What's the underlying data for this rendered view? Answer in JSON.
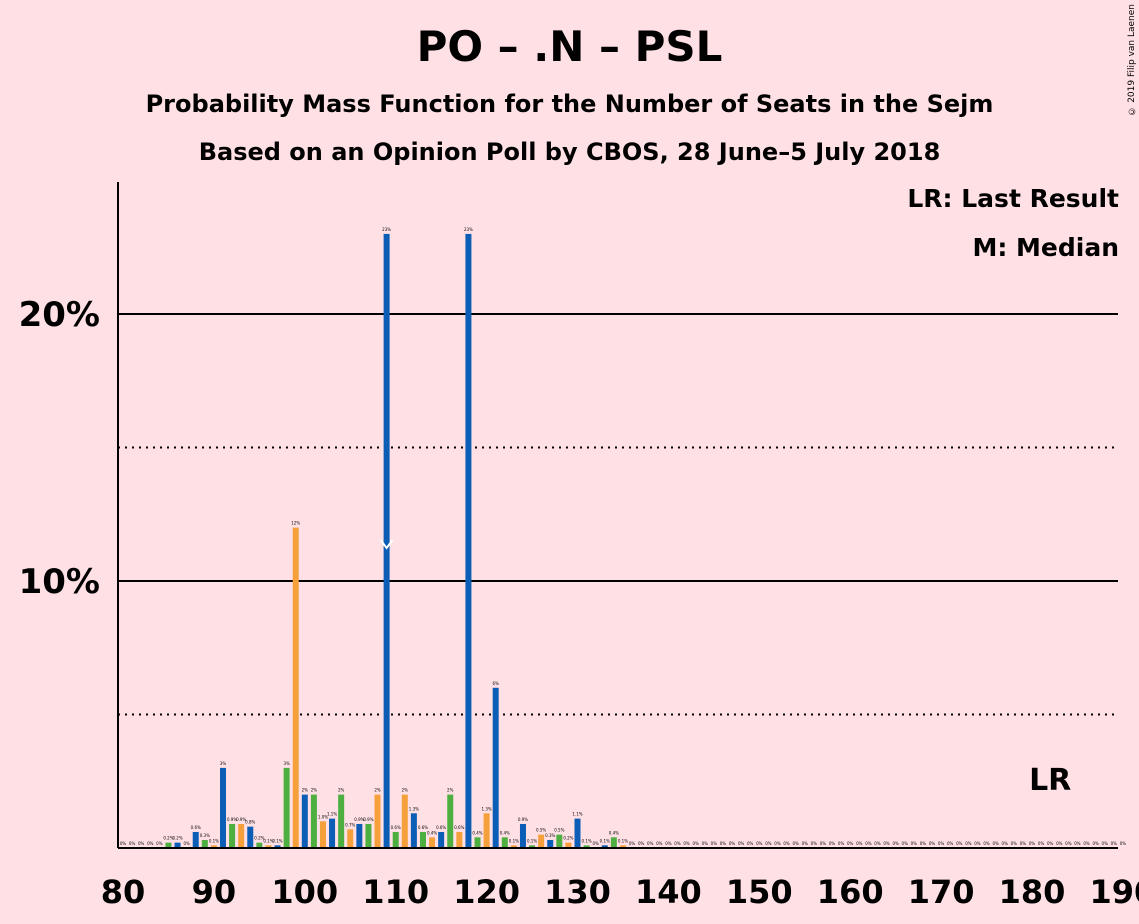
{
  "title": "PO – .N – PSL",
  "subtitle": "Probability Mass Function for the Number of Seats in the Sejm",
  "subtitle2": "Based on an Opinion Poll by CBOS, 28 June–5 July 2018",
  "legend": {
    "last_result": "LR: Last Result",
    "median": "M: Median"
  },
  "credit": "© 2019 Filip van Laenen",
  "colors": {
    "background": "#FFE1E5",
    "blue": "#0B5DB5",
    "orange": "#F5A03A",
    "green": "#4CAF3F",
    "text": "#000000"
  },
  "chart_data": {
    "type": "bar",
    "xlim": [
      80,
      190
    ],
    "ylim": [
      0,
      25
    ],
    "x_ticks": [
      80,
      90,
      100,
      110,
      120,
      130,
      140,
      150,
      160,
      170,
      180,
      190
    ],
    "y_gridlines_solid": [
      10,
      20
    ],
    "y_gridlines_dotted": [
      5,
      15
    ],
    "y_tick_labels": [
      {
        "value": 10,
        "label": "10%"
      },
      {
        "value": 20,
        "label": "20%"
      }
    ],
    "last_result": {
      "seats": 182,
      "label": "LR"
    },
    "median": {
      "seats": 109,
      "label": "M"
    },
    "bars": [
      {
        "seats": 80,
        "value": 0,
        "label": "0%",
        "color": "blue"
      },
      {
        "seats": 81,
        "value": 0,
        "label": "0%",
        "color": "orange"
      },
      {
        "seats": 82,
        "value": 0,
        "label": "0%",
        "color": "green"
      },
      {
        "seats": 83,
        "value": 0,
        "label": "0%",
        "color": "blue"
      },
      {
        "seats": 84,
        "value": 0,
        "label": "0%",
        "color": "orange"
      },
      {
        "seats": 85,
        "value": 0.2,
        "label": "0.2%",
        "color": "green"
      },
      {
        "seats": 86,
        "value": 0.2,
        "label": "0.2%",
        "color": "blue"
      },
      {
        "seats": 87,
        "value": 0,
        "label": "0%",
        "color": "orange"
      },
      {
        "seats": 88,
        "value": 0.6,
        "label": "0.6%",
        "color": "blue"
      },
      {
        "seats": 89,
        "value": 0.3,
        "label": "0.3%",
        "color": "green"
      },
      {
        "seats": 90,
        "value": 0.1,
        "label": "0.1%",
        "color": "orange"
      },
      {
        "seats": 91,
        "value": 3,
        "label": "3%",
        "color": "blue"
      },
      {
        "seats": 92,
        "value": 0.9,
        "label": "0.9%",
        "color": "green"
      },
      {
        "seats": 93,
        "value": 0.9,
        "label": "0.9%",
        "color": "orange"
      },
      {
        "seats": 94,
        "value": 0.8,
        "label": "0.8%",
        "color": "blue"
      },
      {
        "seats": 95,
        "value": 0.2,
        "label": "0.2%",
        "color": "green"
      },
      {
        "seats": 96,
        "value": 0.1,
        "label": "0.1%",
        "color": "orange"
      },
      {
        "seats": 97,
        "value": 0.1,
        "label": "0.1%",
        "color": "blue"
      },
      {
        "seats": 98,
        "value": 3,
        "label": "3%",
        "color": "green"
      },
      {
        "seats": 99,
        "value": 12,
        "label": "12%",
        "color": "orange"
      },
      {
        "seats": 100,
        "value": 2,
        "label": "2%",
        "color": "blue"
      },
      {
        "seats": 101,
        "value": 2,
        "label": "2%",
        "color": "green"
      },
      {
        "seats": 102,
        "value": 1,
        "label": "1.0%",
        "color": "orange"
      },
      {
        "seats": 103,
        "value": 1.1,
        "label": "1.1%",
        "color": "blue"
      },
      {
        "seats": 104,
        "value": 2,
        "label": "2%",
        "color": "green"
      },
      {
        "seats": 105,
        "value": 0.7,
        "label": "0.7%",
        "color": "orange"
      },
      {
        "seats": 106,
        "value": 0.9,
        "label": "0.9%",
        "color": "blue"
      },
      {
        "seats": 107,
        "value": 0.9,
        "label": "0.9%",
        "color": "green"
      },
      {
        "seats": 108,
        "value": 2,
        "label": "2%",
        "color": "orange"
      },
      {
        "seats": 109,
        "value": 23,
        "label": "23%",
        "color": "blue"
      },
      {
        "seats": 110,
        "value": 0.6,
        "label": "0.6%",
        "color": "green"
      },
      {
        "seats": 111,
        "value": 2,
        "label": "2%",
        "color": "orange"
      },
      {
        "seats": 112,
        "value": 1.3,
        "label": "1.3%",
        "color": "blue"
      },
      {
        "seats": 113,
        "value": 0.6,
        "label": "0.6%",
        "color": "green"
      },
      {
        "seats": 114,
        "value": 0.4,
        "label": "0.4%",
        "color": "orange"
      },
      {
        "seats": 115,
        "value": 0.6,
        "label": "0.6%",
        "color": "blue"
      },
      {
        "seats": 116,
        "value": 2,
        "label": "2%",
        "color": "green"
      },
      {
        "seats": 117,
        "value": 0.6,
        "label": "0.6%",
        "color": "orange"
      },
      {
        "seats": 118,
        "value": 23,
        "label": "23%",
        "color": "blue"
      },
      {
        "seats": 119,
        "value": 0.4,
        "label": "0.4%",
        "color": "green"
      },
      {
        "seats": 120,
        "value": 1.3,
        "label": "1.3%",
        "color": "orange"
      },
      {
        "seats": 121,
        "value": 6,
        "label": "6%",
        "color": "blue"
      },
      {
        "seats": 122,
        "value": 0.4,
        "label": "0.4%",
        "color": "green"
      },
      {
        "seats": 123,
        "value": 0.1,
        "label": "0.1%",
        "color": "orange"
      },
      {
        "seats": 124,
        "value": 0.9,
        "label": "0.9%",
        "color": "blue"
      },
      {
        "seats": 125,
        "value": 0.1,
        "label": "0.1%",
        "color": "green"
      },
      {
        "seats": 126,
        "value": 0.5,
        "label": "0.5%",
        "color": "orange"
      },
      {
        "seats": 127,
        "value": 0.3,
        "label": "0.3%",
        "color": "blue"
      },
      {
        "seats": 128,
        "value": 0.5,
        "label": "0.5%",
        "color": "green"
      },
      {
        "seats": 129,
        "value": 0.2,
        "label": "0.2%",
        "color": "orange"
      },
      {
        "seats": 130,
        "value": 1.1,
        "label": "1.1%",
        "color": "blue"
      },
      {
        "seats": 131,
        "value": 0.1,
        "label": "0.1%",
        "color": "green"
      },
      {
        "seats": 132,
        "value": 0,
        "label": "0%",
        "color": "orange"
      },
      {
        "seats": 133,
        "value": 0.1,
        "label": "0.1%",
        "color": "blue"
      },
      {
        "seats": 134,
        "value": 0.4,
        "label": "0.4%",
        "color": "green"
      },
      {
        "seats": 135,
        "value": 0.1,
        "label": "0.1%",
        "color": "orange"
      },
      {
        "seats": 136,
        "value": 0,
        "label": "0%",
        "color": "blue"
      },
      {
        "seats": 137,
        "value": 0,
        "label": "0%",
        "color": "green"
      },
      {
        "seats": 138,
        "value": 0,
        "label": "0%",
        "color": "orange"
      },
      {
        "seats": 139,
        "value": 0,
        "label": "0%",
        "color": "blue"
      },
      {
        "seats": 140,
        "value": 0,
        "label": "0%",
        "color": "green"
      },
      {
        "seats": 141,
        "value": 0,
        "label": "0%",
        "color": "orange"
      },
      {
        "seats": 142,
        "value": 0,
        "label": "0%",
        "color": "blue"
      },
      {
        "seats": 143,
        "value": 0,
        "label": "0%",
        "color": "green"
      },
      {
        "seats": 144,
        "value": 0,
        "label": "0%",
        "color": "orange"
      },
      {
        "seats": 145,
        "value": 0,
        "label": "0%",
        "color": "blue"
      },
      {
        "seats": 146,
        "value": 0,
        "label": "0%",
        "color": "green"
      },
      {
        "seats": 147,
        "value": 0,
        "label": "0%",
        "color": "orange"
      },
      {
        "seats": 148,
        "value": 0,
        "label": "0%",
        "color": "blue"
      },
      {
        "seats": 149,
        "value": 0,
        "label": "0%",
        "color": "green"
      },
      {
        "seats": 150,
        "value": 0,
        "label": "0%",
        "color": "orange"
      },
      {
        "seats": 151,
        "value": 0,
        "label": "0%",
        "color": "blue"
      },
      {
        "seats": 152,
        "value": 0,
        "label": "0%",
        "color": "green"
      },
      {
        "seats": 153,
        "value": 0,
        "label": "0%",
        "color": "orange"
      },
      {
        "seats": 154,
        "value": 0,
        "label": "0%",
        "color": "blue"
      },
      {
        "seats": 155,
        "value": 0,
        "label": "0%",
        "color": "green"
      },
      {
        "seats": 156,
        "value": 0,
        "label": "0%",
        "color": "orange"
      },
      {
        "seats": 157,
        "value": 0,
        "label": "0%",
        "color": "blue"
      },
      {
        "seats": 158,
        "value": 0,
        "label": "0%",
        "color": "green"
      },
      {
        "seats": 159,
        "value": 0,
        "label": "0%",
        "color": "orange"
      },
      {
        "seats": 160,
        "value": 0,
        "label": "0%",
        "color": "blue"
      },
      {
        "seats": 161,
        "value": 0,
        "label": "0%",
        "color": "green"
      },
      {
        "seats": 162,
        "value": 0,
        "label": "0%",
        "color": "orange"
      },
      {
        "seats": 163,
        "value": 0,
        "label": "0%",
        "color": "blue"
      },
      {
        "seats": 164,
        "value": 0,
        "label": "0%",
        "color": "green"
      },
      {
        "seats": 165,
        "value": 0,
        "label": "0%",
        "color": "orange"
      },
      {
        "seats": 166,
        "value": 0,
        "label": "0%",
        "color": "blue"
      },
      {
        "seats": 167,
        "value": 0,
        "label": "0%",
        "color": "green"
      },
      {
        "seats": 168,
        "value": 0,
        "label": "0%",
        "color": "orange"
      },
      {
        "seats": 169,
        "value": 0,
        "label": "0%",
        "color": "blue"
      },
      {
        "seats": 170,
        "value": 0,
        "label": "0%",
        "color": "green"
      },
      {
        "seats": 171,
        "value": 0,
        "label": "0%",
        "color": "orange"
      },
      {
        "seats": 172,
        "value": 0,
        "label": "0%",
        "color": "blue"
      },
      {
        "seats": 173,
        "value": 0,
        "label": "0%",
        "color": "green"
      },
      {
        "seats": 174,
        "value": 0,
        "label": "0%",
        "color": "orange"
      },
      {
        "seats": 175,
        "value": 0,
        "label": "0%",
        "color": "blue"
      },
      {
        "seats": 176,
        "value": 0,
        "label": "0%",
        "color": "green"
      },
      {
        "seats": 177,
        "value": 0,
        "label": "0%",
        "color": "orange"
      },
      {
        "seats": 178,
        "value": 0,
        "label": "0%",
        "color": "blue"
      },
      {
        "seats": 179,
        "value": 0,
        "label": "0%",
        "color": "green"
      },
      {
        "seats": 180,
        "value": 0,
        "label": "0%",
        "color": "orange"
      },
      {
        "seats": 181,
        "value": 0,
        "label": "0%",
        "color": "blue"
      },
      {
        "seats": 182,
        "value": 0,
        "label": "0%",
        "color": "green"
      },
      {
        "seats": 183,
        "value": 0,
        "label": "0%",
        "color": "orange"
      },
      {
        "seats": 184,
        "value": 0,
        "label": "0%",
        "color": "blue"
      },
      {
        "seats": 185,
        "value": 0,
        "label": "0%",
        "color": "green"
      },
      {
        "seats": 186,
        "value": 0,
        "label": "0%",
        "color": "orange"
      },
      {
        "seats": 187,
        "value": 0,
        "label": "0%",
        "color": "blue"
      },
      {
        "seats": 188,
        "value": 0,
        "label": "0%",
        "color": "green"
      },
      {
        "seats": 189,
        "value": 0,
        "label": "0%",
        "color": "orange"
      },
      {
        "seats": 190,
        "value": 0,
        "label": "0%",
        "color": "blue"
      }
    ]
  }
}
